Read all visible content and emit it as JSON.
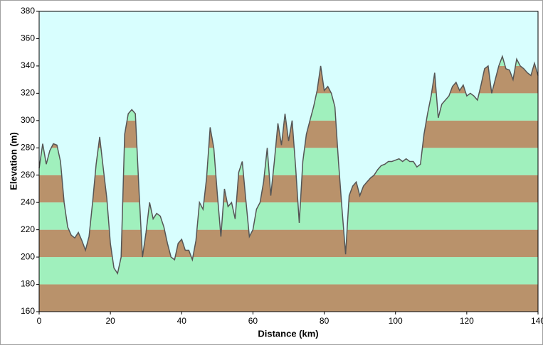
{
  "chart_data": {
    "type": "area",
    "xlabel": "Distance   (km)",
    "ylabel": "Elevation (m)",
    "xlim": [
      0,
      140
    ],
    "xticks": [
      0,
      20,
      40,
      60,
      80,
      100,
      120,
      140
    ],
    "ylim": [
      160,
      380
    ],
    "yticks": [
      160,
      180,
      200,
      220,
      240,
      260,
      280,
      300,
      320,
      340,
      360,
      380
    ],
    "band_colors": [
      "#b9926b",
      "#a0f0bd"
    ],
    "background": "#d8fefe",
    "line_color": "#555555",
    "x": [
      0,
      1,
      2,
      3,
      4,
      5,
      6,
      7,
      8,
      9,
      10,
      11,
      12,
      13,
      14,
      15,
      16,
      17,
      18,
      19,
      20,
      21,
      22,
      23,
      24,
      25,
      26,
      27,
      28,
      29,
      30,
      31,
      32,
      33,
      34,
      35,
      36,
      37,
      38,
      39,
      40,
      41,
      42,
      43,
      44,
      45,
      46,
      47,
      48,
      49,
      50,
      51,
      52,
      53,
      54,
      55,
      56,
      57,
      58,
      59,
      60,
      61,
      62,
      63,
      64,
      65,
      66,
      67,
      68,
      69,
      70,
      71,
      72,
      73,
      74,
      75,
      76,
      77,
      78,
      79,
      80,
      81,
      82,
      83,
      84,
      85,
      86,
      87,
      88,
      89,
      90,
      91,
      92,
      93,
      94,
      95,
      96,
      97,
      98,
      99,
      100,
      101,
      102,
      103,
      104,
      105,
      106,
      107,
      108,
      109,
      110,
      111,
      112,
      113,
      114,
      115,
      116,
      117,
      118,
      119,
      120,
      121,
      122,
      123,
      124,
      125,
      126,
      127,
      128,
      129,
      130,
      131,
      132,
      133,
      134,
      135,
      136,
      137,
      138,
      139,
      140
    ],
    "values": [
      265,
      283,
      268,
      278,
      283,
      282,
      270,
      240,
      222,
      216,
      214,
      218,
      212,
      205,
      215,
      240,
      268,
      288,
      265,
      243,
      210,
      192,
      188,
      200,
      290,
      305,
      308,
      305,
      250,
      200,
      218,
      240,
      228,
      232,
      230,
      222,
      210,
      200,
      198,
      210,
      213,
      205,
      205,
      198,
      212,
      240,
      235,
      258,
      295,
      280,
      246,
      215,
      250,
      237,
      240,
      228,
      262,
      270,
      242,
      215,
      220,
      235,
      240,
      255,
      280,
      245,
      270,
      298,
      282,
      305,
      285,
      300,
      265,
      225,
      270,
      290,
      300,
      310,
      322,
      340,
      322,
      325,
      320,
      310,
      270,
      235,
      202,
      245,
      252,
      255,
      245,
      252,
      255,
      258,
      260,
      264,
      267,
      268,
      270,
      270,
      271,
      272,
      270,
      272,
      270,
      270,
      266,
      268,
      290,
      305,
      318,
      335,
      302,
      312,
      315,
      318,
      325,
      328,
      322,
      326,
      318,
      320,
      318,
      315,
      326,
      338,
      340,
      320,
      330,
      340,
      347,
      338,
      337,
      330,
      345,
      340,
      338,
      335,
      333,
      342,
      333
    ]
  }
}
